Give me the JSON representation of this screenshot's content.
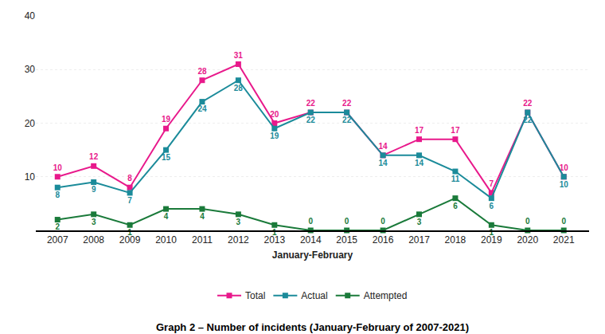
{
  "chart_data": {
    "type": "line",
    "title": "Graph 2 – Number of incidents (January-February of 2007-2021)",
    "xlabel": "January-February",
    "x": [
      2007,
      2008,
      2009,
      2010,
      2011,
      2012,
      2013,
      2014,
      2015,
      2016,
      2017,
      2018,
      2019,
      2020,
      2021
    ],
    "series": [
      {
        "name": "Total",
        "color": "#E8198B",
        "values": [
          10,
          12,
          8,
          19,
          28,
          31,
          20,
          22,
          22,
          14,
          17,
          17,
          7,
          22,
          10
        ]
      },
      {
        "name": "Actual",
        "color": "#1B8B9A",
        "values": [
          8,
          9,
          7,
          15,
          24,
          28,
          19,
          22,
          22,
          14,
          14,
          11,
          6,
          22,
          10
        ]
      },
      {
        "name": "Attempted",
        "color": "#1A7A3A",
        "values": [
          2,
          3,
          1,
          4,
          4,
          3,
          1,
          0,
          0,
          0,
          3,
          6,
          1,
          0,
          0
        ]
      }
    ],
    "xlim": [
      2006.4,
      2021.7
    ],
    "xticks": [
      2007,
      2008,
      2009,
      2010,
      2011,
      2012,
      2013,
      2014,
      2015,
      2016,
      2017,
      2018,
      2019,
      2020,
      2021
    ],
    "ylim": [
      0,
      40
    ],
    "yticks": [
      10,
      20,
      30,
      40
    ],
    "grid": true,
    "legend": "bottom",
    "data_labels": true,
    "marker": "square"
  }
}
